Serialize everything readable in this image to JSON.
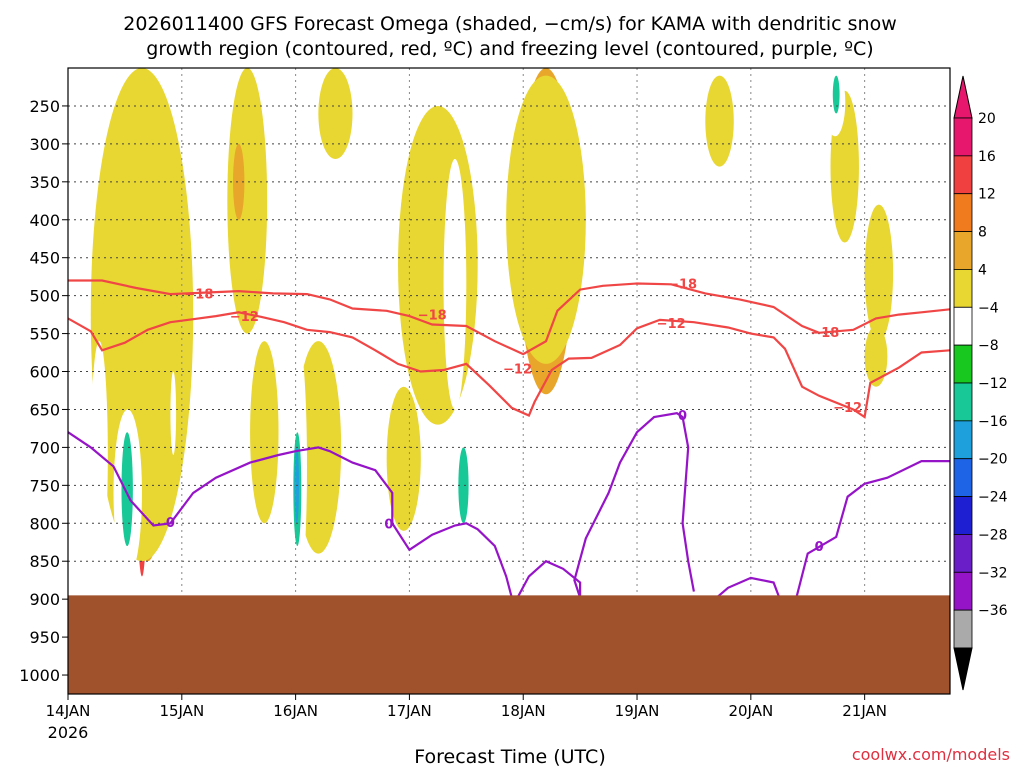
{
  "chart_data": {
    "type": "heatmap",
    "title_line1": "2026011400 GFS Forecast Omega (shaded, −cm/s) for KAMA with dendritic snow",
    "title_line2": "growth region (contoured, red, ºC) and freezing level (contoured, purple, ºC)",
    "xlabel": "Forecast Time (UTC)",
    "credit": "coolwx.com/models",
    "x_ticks": [
      "14JAN",
      "15JAN",
      "16JAN",
      "17JAN",
      "18JAN",
      "19JAN",
      "20JAN",
      "21JAN"
    ],
    "x_year_label": "2026",
    "xlim_days": [
      0,
      7.75
    ],
    "y_ticks": [
      250,
      300,
      350,
      400,
      450,
      500,
      550,
      600,
      650,
      700,
      750,
      800,
      850,
      900,
      950,
      1000
    ],
    "ylim_hpa": [
      200,
      1025
    ],
    "ground_pressure_hpa": 895,
    "colorbar": {
      "labels": [
        "20",
        "16",
        "12",
        "8",
        "4",
        "−4",
        "−8",
        "−12",
        "−16",
        "−20",
        "−24",
        "−28",
        "−32",
        "−36"
      ],
      "colors": [
        "#e8176e",
        "#f04040",
        "#f07a1e",
        "#e8a62a",
        "#e8d632",
        "#ffffff",
        "#18c81e",
        "#18c896",
        "#1ea0dc",
        "#1e64e6",
        "#1e1ed2",
        "#6a1ec8",
        "#9614c8",
        "#aaaaaa"
      ],
      "top_arrow_color": "#e8176e",
      "bottom_arrow_color": "#000000"
    },
    "contour_labels": {
      "dgz_warm": "−12",
      "dgz_cold": "−18",
      "freezing": "0"
    },
    "contours": {
      "dgz_cold_minus18": {
        "color": "#f04646",
        "points": [
          [
            0,
            480
          ],
          [
            0.3,
            480
          ],
          [
            0.6,
            490
          ],
          [
            0.9,
            498
          ],
          [
            1.2,
            496
          ],
          [
            1.5,
            494
          ],
          [
            1.8,
            497
          ],
          [
            2.1,
            498
          ],
          [
            2.3,
            505
          ],
          [
            2.5,
            517
          ],
          [
            2.8,
            520
          ],
          [
            3.0,
            527
          ],
          [
            3.2,
            538
          ],
          [
            3.5,
            540
          ],
          [
            3.75,
            560
          ],
          [
            4.0,
            577
          ],
          [
            4.2,
            560
          ],
          [
            4.3,
            520
          ],
          [
            4.5,
            492
          ],
          [
            4.7,
            487
          ],
          [
            5.0,
            484
          ],
          [
            5.3,
            485
          ],
          [
            5.6,
            497
          ],
          [
            5.9,
            505
          ],
          [
            6.2,
            515
          ],
          [
            6.45,
            540
          ],
          [
            6.6,
            549
          ],
          [
            6.9,
            545
          ],
          [
            7.1,
            530
          ],
          [
            7.3,
            525
          ],
          [
            7.5,
            522
          ],
          [
            7.75,
            518
          ]
        ]
      },
      "dgz_warm_minus12": {
        "color": "#f04646",
        "points": [
          [
            0,
            530
          ],
          [
            0.2,
            547
          ],
          [
            0.3,
            572
          ],
          [
            0.5,
            562
          ],
          [
            0.7,
            545
          ],
          [
            0.9,
            535
          ],
          [
            1.1,
            531
          ],
          [
            1.3,
            527
          ],
          [
            1.5,
            522
          ],
          [
            1.7,
            528
          ],
          [
            1.9,
            535
          ],
          [
            2.1,
            545
          ],
          [
            2.3,
            548
          ],
          [
            2.5,
            555
          ],
          [
            2.7,
            572
          ],
          [
            2.9,
            590
          ],
          [
            3.1,
            600
          ],
          [
            3.3,
            598
          ],
          [
            3.5,
            590
          ],
          [
            3.7,
            618
          ],
          [
            3.9,
            648
          ],
          [
            4.05,
            658
          ],
          [
            4.1,
            640
          ],
          [
            4.25,
            598
          ],
          [
            4.4,
            583
          ],
          [
            4.6,
            582
          ],
          [
            4.85,
            565
          ],
          [
            5.0,
            543
          ],
          [
            5.2,
            532
          ],
          [
            5.5,
            535
          ],
          [
            5.8,
            542
          ],
          [
            6.0,
            550
          ],
          [
            6.2,
            555
          ],
          [
            6.3,
            570
          ],
          [
            6.45,
            620
          ],
          [
            6.6,
            632
          ],
          [
            6.9,
            650
          ],
          [
            7.0,
            660
          ],
          [
            7.05,
            615
          ],
          [
            7.3,
            595
          ],
          [
            7.5,
            575
          ],
          [
            7.75,
            572
          ]
        ]
      },
      "freeze_left": {
        "color": "#9614c8",
        "points": [
          [
            0,
            680
          ],
          [
            0.2,
            700
          ],
          [
            0.4,
            725
          ],
          [
            0.55,
            770
          ],
          [
            0.75,
            803
          ],
          [
            0.9,
            800
          ],
          [
            1.1,
            760
          ],
          [
            1.3,
            740
          ],
          [
            1.6,
            720
          ],
          [
            1.85,
            710
          ],
          [
            2.0,
            705
          ],
          [
            2.2,
            700
          ],
          [
            2.3,
            705
          ],
          [
            2.5,
            720
          ],
          [
            2.7,
            730
          ],
          [
            2.85,
            760
          ],
          [
            2.85,
            800
          ],
          [
            3.0,
            835
          ],
          [
            3.2,
            815
          ],
          [
            3.4,
            803
          ],
          [
            3.5,
            800
          ],
          [
            3.6,
            808
          ],
          [
            3.75,
            830
          ],
          [
            3.85,
            870
          ],
          [
            3.9,
            898
          ]
        ]
      },
      "freeze_mid": {
        "color": "#9614c8",
        "points": [
          [
            3.95,
            898
          ],
          [
            4.05,
            870
          ],
          [
            4.2,
            850
          ],
          [
            4.35,
            860
          ],
          [
            4.5,
            878
          ],
          [
            4.5,
            898
          ]
        ]
      },
      "freeze_right": {
        "color": "#9614c8",
        "points": [
          [
            4.5,
            898
          ],
          [
            4.45,
            875
          ],
          [
            4.55,
            820
          ],
          [
            4.75,
            760
          ],
          [
            4.85,
            720
          ],
          [
            5.0,
            680
          ],
          [
            5.15,
            660
          ],
          [
            5.35,
            655
          ],
          [
            5.4,
            660
          ],
          [
            5.45,
            700
          ],
          [
            5.4,
            800
          ],
          [
            5.45,
            850
          ],
          [
            5.5,
            890
          ]
        ]
      },
      "freeze_far": {
        "color": "#9614c8",
        "points": [
          [
            5.7,
            898
          ],
          [
            5.8,
            885
          ],
          [
            6.0,
            872
          ],
          [
            6.2,
            878
          ],
          [
            6.25,
            898
          ]
        ]
      },
      "freeze_far2": {
        "color": "#9614c8",
        "points": [
          [
            6.4,
            898
          ],
          [
            6.5,
            840
          ],
          [
            6.75,
            818
          ],
          [
            6.85,
            765
          ],
          [
            7.0,
            748
          ],
          [
            7.2,
            740
          ],
          [
            7.5,
            718
          ],
          [
            7.75,
            718
          ]
        ]
      }
    },
    "omega_regions": [
      {
        "c": 0,
        "x": 0.62,
        "y": 650,
        "w": 0.05,
        "h": 110
      },
      {
        "c": 1,
        "x": 0.6,
        "y": 520,
        "w": 0.1,
        "h": 350
      },
      {
        "c": 1,
        "x": 0.62,
        "y": 200,
        "w": 0.08,
        "h": 200
      },
      {
        "c": 2,
        "x": 0.55,
        "y": 330,
        "w": 0.25,
        "h": 400
      },
      {
        "c": 3,
        "x": 0.5,
        "y": 250,
        "w": 0.4,
        "h": 600
      },
      {
        "c": 4,
        "x": 0.2,
        "y": 200,
        "w": 0.9,
        "h": 650
      },
      {
        "c": 1,
        "x": 4.13,
        "y": 200,
        "w": 0.12,
        "h": 370
      },
      {
        "c": 0,
        "x": 4.15,
        "y": 210,
        "w": 0.07,
        "h": 180
      },
      {
        "c": 2,
        "x": 4.05,
        "y": 200,
        "w": 0.3,
        "h": 400
      },
      {
        "c": 3,
        "x": 3.95,
        "y": 200,
        "w": 0.5,
        "h": 430
      },
      {
        "c": 4,
        "x": 3.85,
        "y": 210,
        "w": 0.7,
        "h": 380
      },
      {
        "c": 3,
        "x": 3.15,
        "y": 330,
        "w": 0.15,
        "h": 220
      },
      {
        "c": 4,
        "x": 2.9,
        "y": 250,
        "w": 0.7,
        "h": 420
      },
      {
        "c": 4,
        "x": 1.4,
        "y": 200,
        "w": 0.35,
        "h": 350
      },
      {
        "c": 3,
        "x": 1.45,
        "y": 300,
        "w": 0.1,
        "h": 100
      },
      {
        "c": 4,
        "x": 2.2,
        "y": 200,
        "w": 0.3,
        "h": 120
      },
      {
        "c": 4,
        "x": 5.6,
        "y": 210,
        "w": 0.25,
        "h": 120
      },
      {
        "c": 4,
        "x": 6.7,
        "y": 230,
        "w": 0.25,
        "h": 200
      },
      {
        "c": 4,
        "x": 7.0,
        "y": 380,
        "w": 0.25,
        "h": 180
      },
      {
        "c": 4,
        "x": 7.0,
        "y": 540,
        "w": 0.2,
        "h": 80
      },
      {
        "c": 4,
        "x": 1.6,
        "y": 560,
        "w": 0.25,
        "h": 240
      },
      {
        "c": 4,
        "x": 2.0,
        "y": 560,
        "w": 0.4,
        "h": 280
      },
      {
        "c": 4,
        "x": 2.8,
        "y": 620,
        "w": 0.3,
        "h": 190
      },
      {
        "c": 5,
        "x": 0.4,
        "y": 650,
        "w": 0.25,
        "h": 220
      },
      {
        "c": 7,
        "x": 0.47,
        "y": 680,
        "w": 0.1,
        "h": 150
      },
      {
        "c": 5,
        "x": 0.2,
        "y": 560,
        "w": 0.15,
        "h": 300
      },
      {
        "c": 5,
        "x": 1.95,
        "y": 560,
        "w": 0.15,
        "h": 330
      },
      {
        "c": 7,
        "x": 1.98,
        "y": 680,
        "w": 0.07,
        "h": 150
      },
      {
        "c": 8,
        "x": 1.99,
        "y": 700,
        "w": 0.04,
        "h": 100
      },
      {
        "c": 5,
        "x": 3.3,
        "y": 320,
        "w": 0.2,
        "h": 330
      },
      {
        "c": 5,
        "x": 3.4,
        "y": 660,
        "w": 0.15,
        "h": 150
      },
      {
        "c": 7,
        "x": 3.43,
        "y": 700,
        "w": 0.09,
        "h": 100
      },
      {
        "c": 5,
        "x": 5.35,
        "y": 520,
        "w": 0.1,
        "h": 340
      },
      {
        "c": 5,
        "x": 4.8,
        "y": 540,
        "w": 0.1,
        "h": 260
      },
      {
        "c": 5,
        "x": 5.0,
        "y": 340,
        "w": 0.05,
        "h": 70
      },
      {
        "c": 5,
        "x": 5.1,
        "y": 210,
        "w": 0.05,
        "h": 100
      },
      {
        "c": 5,
        "x": 5.45,
        "y": 300,
        "w": 0.07,
        "h": 150
      },
      {
        "c": 5,
        "x": 5.95,
        "y": 300,
        "w": 0.06,
        "h": 120
      },
      {
        "c": 5,
        "x": 6.15,
        "y": 220,
        "w": 0.08,
        "h": 100
      },
      {
        "c": 5,
        "x": 6.65,
        "y": 200,
        "w": 0.18,
        "h": 90
      },
      {
        "c": 7,
        "x": 6.72,
        "y": 210,
        "w": 0.06,
        "h": 50
      },
      {
        "c": 5,
        "x": 2.0,
        "y": 210,
        "w": 0.05,
        "h": 160
      },
      {
        "c": 5,
        "x": 2.1,
        "y": 300,
        "w": 0.05,
        "h": 80
      },
      {
        "c": 5,
        "x": 0.25,
        "y": 580,
        "w": 0.05,
        "h": 80
      },
      {
        "c": 5,
        "x": 2.45,
        "y": 440,
        "w": 0.05,
        "h": 80
      },
      {
        "c": 5,
        "x": 0.9,
        "y": 600,
        "w": 0.05,
        "h": 110
      }
    ]
  }
}
